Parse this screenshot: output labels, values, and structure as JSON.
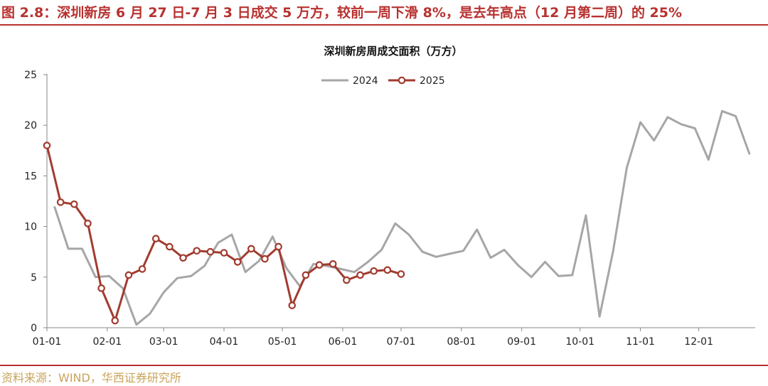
{
  "header": {
    "title": "图 2.8：深圳新房 6 月 27 日-7 月 3 日成交 5 万方，较前一周下滑 8%，是去年高点（12 月第二周）的 25%"
  },
  "footer": {
    "source": "资料来源：WIND，华西证券研究所"
  },
  "colors": {
    "accent": "#b8312f",
    "source_text": "#c9a35a",
    "series_2024": "#a6a6a6",
    "series_2025": "#a23b2f"
  },
  "chart_data": {
    "type": "line",
    "title": "深圳新房周成交面积（万方）",
    "ylim": [
      0,
      25
    ],
    "yticks": [
      0,
      5,
      10,
      15,
      20,
      25
    ],
    "xlim": [
      0,
      364
    ],
    "xticks": [
      {
        "label": "01-01",
        "day": 0
      },
      {
        "label": "02-01",
        "day": 31
      },
      {
        "label": "03-01",
        "day": 60
      },
      {
        "label": "04-01",
        "day": 91
      },
      {
        "label": "05-01",
        "day": 121
      },
      {
        "label": "06-01",
        "day": 152
      },
      {
        "label": "07-01",
        "day": 182
      },
      {
        "label": "08-01",
        "day": 213
      },
      {
        "label": "09-01",
        "day": 244
      },
      {
        "label": "10-01",
        "day": 274
      },
      {
        "label": "11-01",
        "day": 305
      },
      {
        "label": "12-01",
        "day": 335
      }
    ],
    "legend_position": "top-center",
    "series": [
      {
        "name": "2024",
        "color": "#a6a6a6",
        "marker": false,
        "points": [
          [
            4,
            11.9
          ],
          [
            11,
            7.8
          ],
          [
            18,
            7.8
          ],
          [
            25,
            5.0
          ],
          [
            32,
            5.1
          ],
          [
            39,
            3.9
          ],
          [
            46,
            0.3
          ],
          [
            53,
            1.4
          ],
          [
            60,
            3.5
          ],
          [
            67,
            4.9
          ],
          [
            74,
            5.1
          ],
          [
            81,
            6.1
          ],
          [
            88,
            8.4
          ],
          [
            95,
            9.2
          ],
          [
            102,
            5.5
          ],
          [
            109,
            6.6
          ],
          [
            116,
            9.0
          ],
          [
            123,
            5.9
          ],
          [
            130,
            4.1
          ],
          [
            137,
            6.3
          ],
          [
            144,
            6.1
          ],
          [
            151,
            5.8
          ],
          [
            158,
            5.5
          ],
          [
            165,
            6.5
          ],
          [
            172,
            7.7
          ],
          [
            179,
            10.3
          ],
          [
            186,
            9.2
          ],
          [
            193,
            7.5
          ],
          [
            200,
            7.0
          ],
          [
            207,
            7.3
          ],
          [
            214,
            7.6
          ],
          [
            221,
            9.7
          ],
          [
            228,
            6.9
          ],
          [
            235,
            7.7
          ],
          [
            242,
            6.2
          ],
          [
            249,
            5.0
          ],
          [
            256,
            6.5
          ],
          [
            263,
            5.1
          ],
          [
            270,
            5.2
          ],
          [
            277,
            11.1
          ],
          [
            284,
            1.1
          ],
          [
            291,
            7.6
          ],
          [
            298,
            15.8
          ],
          [
            305,
            20.3
          ],
          [
            312,
            18.5
          ],
          [
            319,
            20.8
          ],
          [
            326,
            20.1
          ],
          [
            333,
            19.7
          ],
          [
            340,
            16.6
          ],
          [
            347,
            21.4
          ],
          [
            354,
            20.9
          ],
          [
            361,
            17.2
          ]
        ]
      },
      {
        "name": "2025",
        "color": "#a23b2f",
        "marker": true,
        "points": [
          [
            0,
            18.0
          ],
          [
            7,
            12.4
          ],
          [
            14,
            12.2
          ],
          [
            21,
            10.3
          ],
          [
            28,
            3.9
          ],
          [
            35,
            0.7
          ],
          [
            42,
            5.2
          ],
          [
            49,
            5.8
          ],
          [
            56,
            8.8
          ],
          [
            63,
            8.0
          ],
          [
            70,
            6.9
          ],
          [
            77,
            7.6
          ],
          [
            84,
            7.5
          ],
          [
            91,
            7.4
          ],
          [
            98,
            6.5
          ],
          [
            105,
            7.8
          ],
          [
            112,
            6.8
          ],
          [
            119,
            8.0
          ],
          [
            126,
            2.2
          ],
          [
            133,
            5.2
          ],
          [
            140,
            6.2
          ],
          [
            147,
            6.3
          ],
          [
            154,
            4.7
          ],
          [
            161,
            5.2
          ],
          [
            168,
            5.6
          ],
          [
            175,
            5.7
          ],
          [
            182,
            5.3
          ]
        ]
      }
    ]
  }
}
